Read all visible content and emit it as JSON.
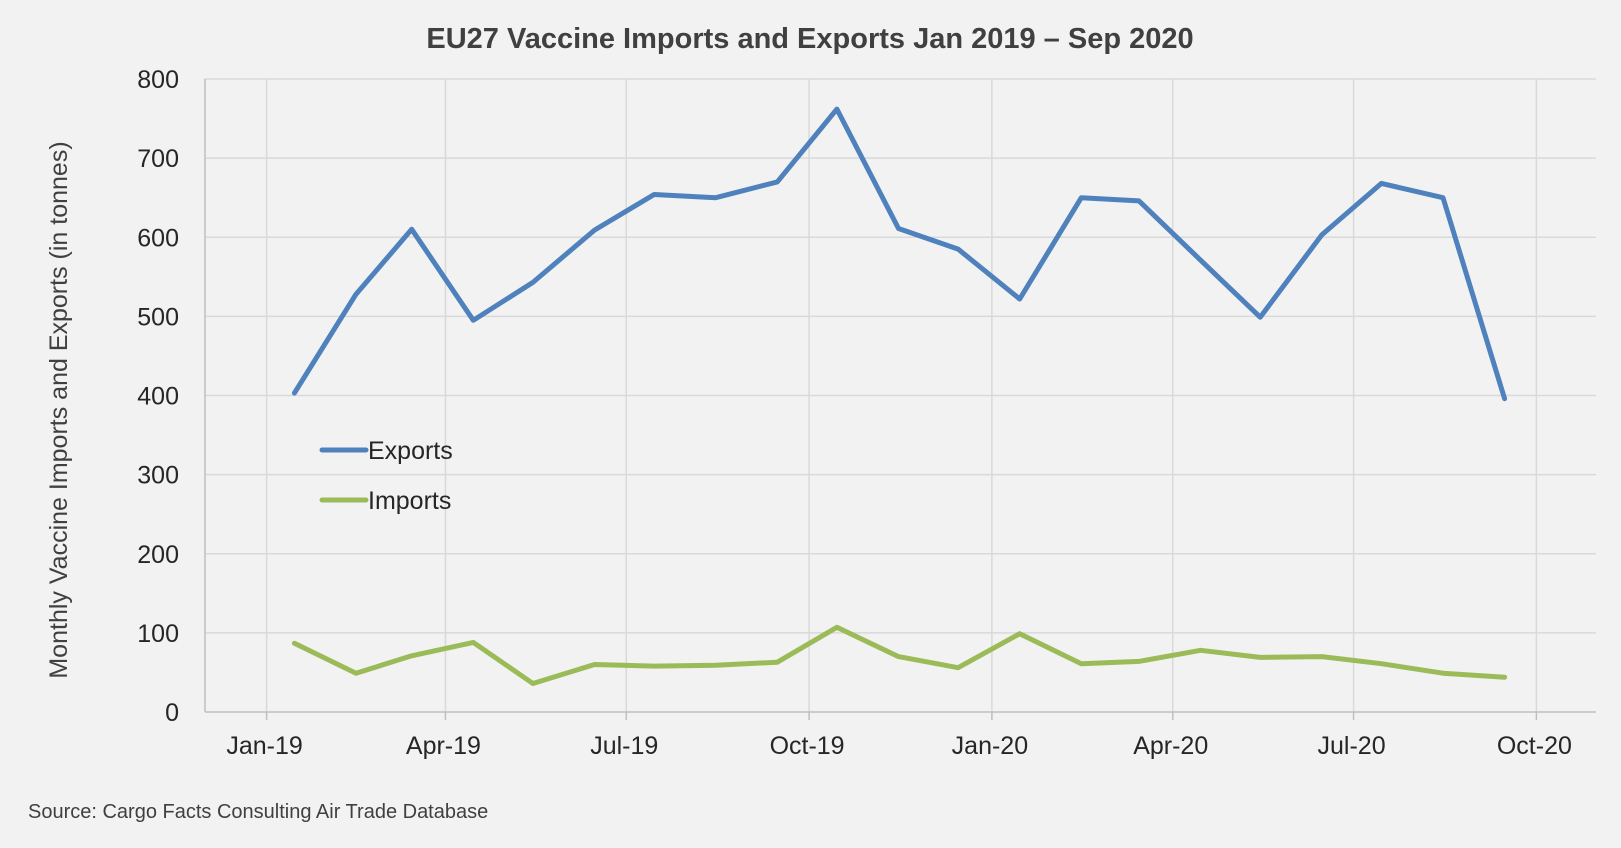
{
  "chart_data": {
    "type": "line",
    "title": "EU27 Vaccine Imports and Exports Jan 2019 – Sep 2020",
    "ylabel": "Monthly Vaccine Imports and Exports (in tonnes)",
    "xlabel": "",
    "x_axis": {
      "type": "date",
      "range": [
        "2018-12-01",
        "2020-10-31"
      ],
      "tick_dates": [
        "2019-01-01",
        "2019-04-01",
        "2019-07-01",
        "2019-10-01",
        "2020-01-01",
        "2020-04-01",
        "2020-07-01",
        "2020-10-01"
      ],
      "tick_labels": [
        "Jan-19",
        "Apr-19",
        "Jul-19",
        "Oct-19",
        "Jan-20",
        "Apr-20",
        "Jul-20",
        "Oct-20"
      ],
      "vertical_grid": true
    },
    "y_axis": {
      "range": [
        0,
        800
      ],
      "ticks": [
        0,
        100,
        200,
        300,
        400,
        500,
        600,
        700,
        800
      ],
      "horizontal_grid": true
    },
    "x": [
      "2019-01-15",
      "2019-02-15",
      "2019-03-15",
      "2019-04-15",
      "2019-05-15",
      "2019-06-15",
      "2019-07-15",
      "2019-08-15",
      "2019-09-15",
      "2019-10-15",
      "2019-11-15",
      "2019-12-15",
      "2020-01-15",
      "2020-02-15",
      "2020-03-15",
      "2020-04-15",
      "2020-05-15",
      "2020-06-15",
      "2020-07-15",
      "2020-08-15",
      "2020-09-15"
    ],
    "series": [
      {
        "name": "Exports",
        "color": "#4f81bd",
        "values": [
          403,
          528,
          610,
          495,
          543,
          609,
          654,
          650,
          670,
          762,
          611,
          585,
          522,
          650,
          646,
          571,
          499,
          603,
          668,
          650,
          396
        ]
      },
      {
        "name": "Imports",
        "color": "#9bbb59",
        "values": [
          87,
          49,
          71,
          88,
          36,
          60,
          58,
          59,
          63,
          107,
          70,
          56,
          99,
          61,
          64,
          78,
          69,
          70,
          61,
          49,
          44
        ]
      }
    ],
    "legend": {
      "position": "center-left"
    },
    "source": "Source:  Cargo Facts Consulting Air Trade Database"
  }
}
